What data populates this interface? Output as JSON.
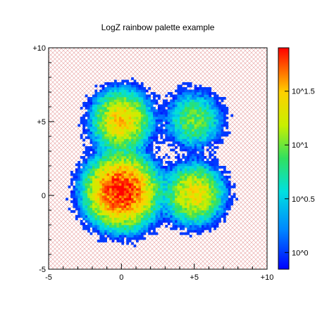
{
  "chart_data": {
    "type": "heatmap",
    "title": "LogZ rainbow palette example",
    "xlabel": "",
    "ylabel": "",
    "xlim": [
      -5,
      10
    ],
    "ylim": [
      -5,
      10
    ],
    "x_ticks": [
      -5,
      0,
      5,
      10
    ],
    "x_tick_labels": [
      "-5",
      "0",
      "+5",
      "+10"
    ],
    "y_ticks": [
      -5,
      0,
      5,
      10
    ],
    "y_tick_labels": [
      "-5",
      "0",
      "+5",
      "+10"
    ],
    "z_scale": "log",
    "zlim": [
      0.7,
      80
    ],
    "colorbar_ticks": [
      1,
      3.16,
      10,
      31.6
    ],
    "colorbar_tick_labels": [
      "10^0",
      "10^0.5",
      "10^1",
      "10^1.5"
    ],
    "palette": "rainbow",
    "background_pattern": "red crosshatch",
    "bins": {
      "x": 90,
      "y": 90
    },
    "clusters": [
      {
        "center": [
          0,
          0.3
        ],
        "sigma": 1.1,
        "peak": 80
      },
      {
        "center": [
          0,
          5.1
        ],
        "sigma": 0.95,
        "peak": 30
      },
      {
        "center": [
          5,
          5.1
        ],
        "sigma": 0.95,
        "peak": 10
      },
      {
        "center": [
          5,
          0.1
        ],
        "sigma": 0.95,
        "peak": 25
      }
    ],
    "colors": {
      "hatch": "#e8a0a0",
      "frame": "#000000"
    }
  }
}
